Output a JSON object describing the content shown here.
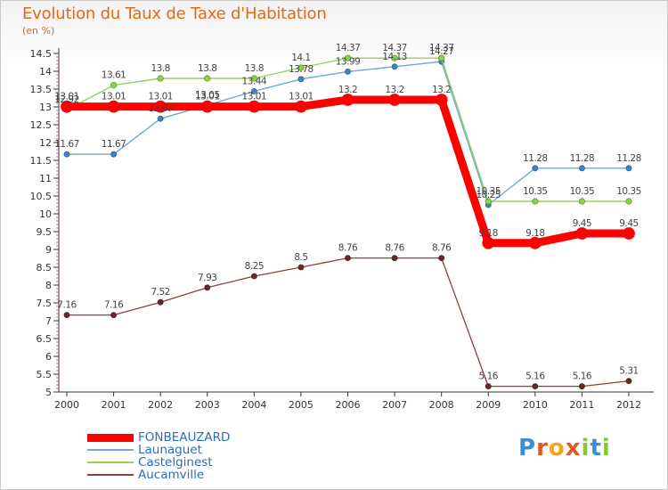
{
  "header": {
    "title": "Evolution du Taux de Taxe d'Habitation",
    "unit": "(en %)"
  },
  "logo": {
    "text": "Proxiti",
    "letter_colors": [
      "#3b8fd1",
      "#e0572a",
      "#f4a31c",
      "#e0572a",
      "#8cc43c",
      "#3b8fd1",
      "#8cc43c"
    ]
  },
  "chart_data": {
    "type": "line",
    "x": [
      "2000",
      "2001",
      "2002",
      "2003",
      "2004",
      "2005",
      "2006",
      "2007",
      "2008",
      "2009",
      "2010",
      "2011",
      "2012"
    ],
    "ylim": [
      5,
      14.5
    ],
    "yticks": [
      "5",
      "5.5",
      "6",
      "6.5",
      "7",
      "7.5",
      "8",
      "8.5",
      "9",
      "9.5",
      "10",
      "10.5",
      "11",
      "11.5",
      "12",
      "12.5",
      "13",
      "13.5",
      "14",
      "14.5"
    ],
    "grid": false,
    "legend_position": "bottom-left",
    "series": [
      {
        "name": "FONBEAUZARD",
        "color": "#ff0000",
        "values": [
          13.01,
          13.01,
          13.01,
          13.01,
          13.01,
          13.01,
          13.2,
          13.2,
          13.2,
          9.18,
          9.18,
          9.45,
          9.45
        ],
        "labels": [
          "13.01",
          "13.01",
          "13.01",
          "13.01",
          "13.01",
          "13.01",
          "13.2",
          "13.2",
          "13.2",
          "9.18",
          "9.18",
          "9.45",
          "9.45"
        ]
      },
      {
        "name": "Launaguet",
        "color": "#6fa8dc",
        "values": [
          11.67,
          11.67,
          12.67,
          13.05,
          13.44,
          13.78,
          13.99,
          14.13,
          14.27,
          10.25,
          11.28,
          11.28,
          11.28
        ],
        "labels": [
          "11.67",
          "11.67",
          "12.67",
          "13.05",
          "13.44",
          "13.78",
          "13.99",
          "14.13",
          "14.27",
          "10.25",
          "11.28",
          "11.28",
          "11.28"
        ]
      },
      {
        "name": "Castelginest",
        "color": "#93d35a",
        "values": [
          12.92,
          13.61,
          13.8,
          13.8,
          13.8,
          14.1,
          14.37,
          14.37,
          14.37,
          10.35,
          10.35,
          10.35,
          10.35
        ],
        "labels": [
          "12.92",
          "13.61",
          "13.8",
          "13.8",
          "13.8",
          "14.1",
          "14.37",
          "14.37",
          "14.37",
          "10.35",
          "10.35",
          "10.35",
          "10.35"
        ]
      },
      {
        "name": "Aucamville",
        "color": "#8c3f3f",
        "values": [
          7.16,
          7.16,
          7.52,
          7.93,
          8.25,
          8.5,
          8.76,
          8.76,
          8.76,
          5.16,
          5.16,
          5.16,
          5.31
        ],
        "labels": [
          "7.16",
          "7.16",
          "7.52",
          "7.93",
          "8.25",
          "8.5",
          "8.76",
          "8.76",
          "8.76",
          "5.16",
          "5.16",
          "5.16",
          "5.31"
        ]
      }
    ]
  }
}
